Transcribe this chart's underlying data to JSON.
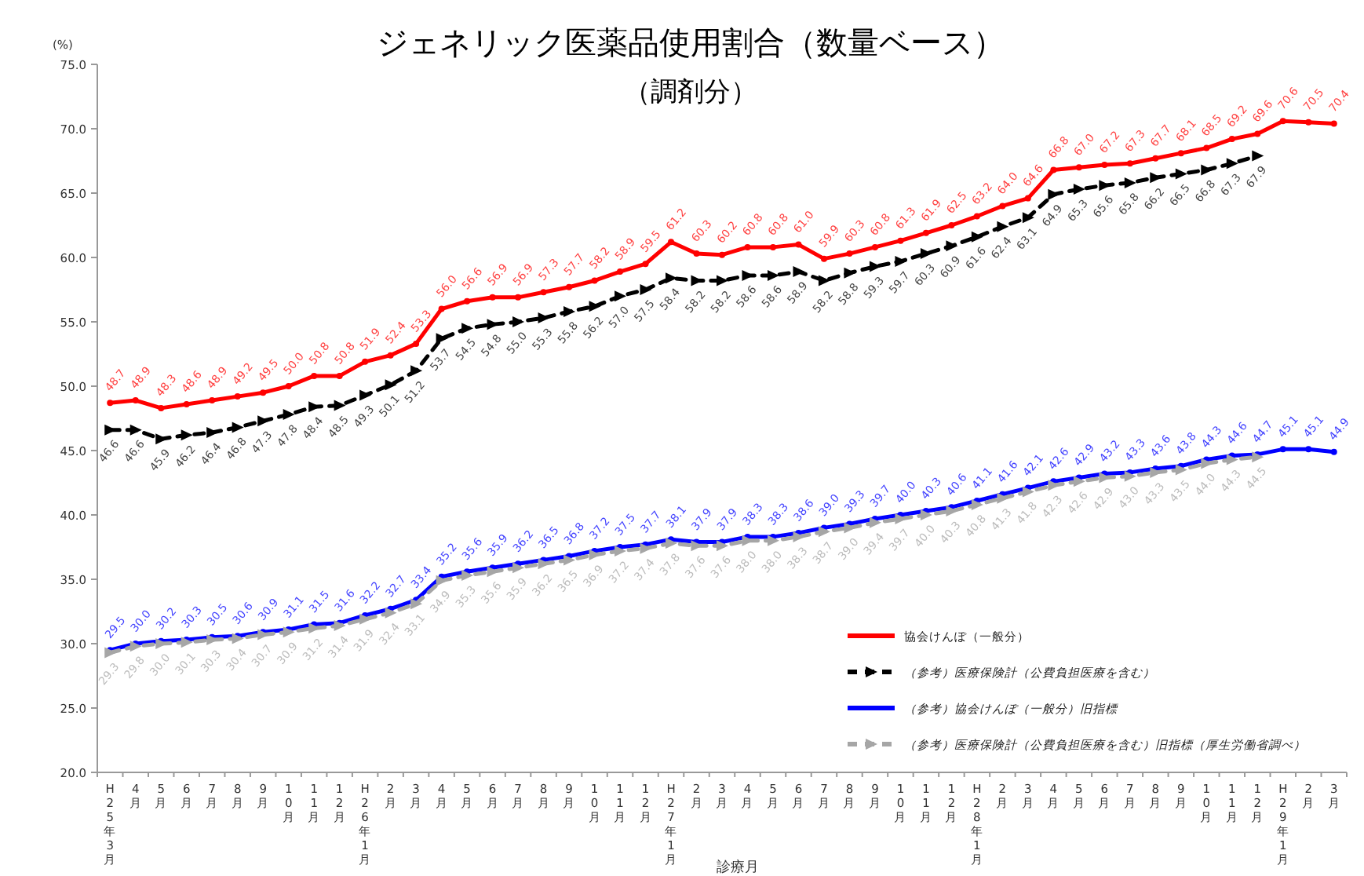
{
  "chart_data": {
    "type": "line",
    "title": "ジェネリック医薬品使用割合（数量ベース）",
    "subtitle": "（調剤分）",
    "xlabel": "診療月",
    "ylabel": "(%)",
    "categories": [
      "H25年3月",
      "4月",
      "5月",
      "6月",
      "7月",
      "8月",
      "9月",
      "10月",
      "11月",
      "12月",
      "H26年1月",
      "2月",
      "3月",
      "4月",
      "5月",
      "6月",
      "7月",
      "8月",
      "9月",
      "10月",
      "11月",
      "12月",
      "H27年1月",
      "2月",
      "3月",
      "4月",
      "5月",
      "6月",
      "7月",
      "8月",
      "9月",
      "10月",
      "11月",
      "12月",
      "H28年1月",
      "2月",
      "3月",
      "4月",
      "5月",
      "6月",
      "7月",
      "8月",
      "9月",
      "10月",
      "11月",
      "12月",
      "H29年1月",
      "2月",
      "3月"
    ],
    "series": [
      {
        "name": "協会けんぽ（一般分）",
        "color": "#ff0000",
        "marker": "circle",
        "line_style": "solid",
        "values": [
          48.7,
          48.9,
          48.3,
          48.6,
          48.9,
          49.2,
          49.5,
          50.0,
          50.8,
          50.8,
          51.9,
          52.4,
          53.3,
          56.0,
          56.6,
          56.9,
          56.9,
          57.3,
          57.7,
          58.2,
          58.9,
          59.5,
          61.2,
          60.3,
          60.2,
          60.8,
          60.8,
          61.0,
          59.9,
          60.3,
          60.8,
          61.3,
          61.9,
          62.5,
          63.2,
          64.0,
          64.6,
          66.8,
          67.0,
          67.2,
          67.3,
          67.7,
          68.1,
          68.5,
          69.2,
          69.6,
          70.6,
          70.5,
          70.4
        ],
        "value_labels": [
          "48.7",
          "48.9",
          "48.3",
          "48.6",
          "48.9",
          "49.2",
          "49.5",
          "50.0",
          "50.8",
          "50.8",
          "51.9",
          "52.4",
          "53.3",
          "56.0",
          "56.6",
          "56.9",
          "56.9",
          "57.3",
          "57.7",
          "58.2",
          "58.9",
          "59.5",
          "61.2",
          "60.3",
          "60.2",
          "60.8",
          "60.8",
          "61.0",
          "59.9",
          "60.3",
          "60.8",
          "61.3",
          "61.9",
          "62.5",
          "63.2",
          "64.0",
          "64.6",
          "66.8",
          "67.0",
          "67.2",
          "67.3",
          "67.7",
          "68.1",
          "68.5",
          "69.2",
          "69.6",
          "70.6",
          "70.5",
          "70.4"
        ]
      },
      {
        "name": "（参考）医療保険計（公費負担医療を含む）",
        "color": "#000000",
        "marker": "triangle",
        "line_style": "dashed",
        "values": [
          46.6,
          46.6,
          45.9,
          46.2,
          46.4,
          46.8,
          47.3,
          47.8,
          48.4,
          48.5,
          49.3,
          50.1,
          51.2,
          53.7,
          54.5,
          54.8,
          55.0,
          55.3,
          55.8,
          56.2,
          57.0,
          57.5,
          58.4,
          58.2,
          58.2,
          58.6,
          58.6,
          58.9,
          58.2,
          58.8,
          59.3,
          59.7,
          60.3,
          60.9,
          61.6,
          62.4,
          63.1,
          64.9,
          65.3,
          65.6,
          65.8,
          66.2,
          66.5,
          66.8,
          67.3,
          67.9,
          null,
          null,
          null
        ],
        "value_labels": [
          "46.6",
          "46.6",
          "45.9",
          "46.2",
          "46.4",
          "46.8",
          "47.3",
          "47.8",
          "48.4",
          "48.5",
          "49.3",
          "50.1",
          "51.2",
          "53.7",
          "54.5",
          "54.8",
          "55.0",
          "55.3",
          "55.8",
          "56.2",
          "57.0",
          "57.5",
          "58.4",
          "58.2",
          "58.2",
          "58.6",
          "58.6",
          "58.9",
          "58.2",
          "58.8",
          "59.3",
          "59.7",
          "60.3",
          "60.9",
          "61.6",
          "62.4",
          "63.1",
          "64.9",
          "65.3",
          "65.6",
          "65.8",
          "66.2",
          "66.5",
          "66.8",
          "67.3",
          "67.9",
          null,
          null,
          null
        ]
      },
      {
        "name": "（参考）協会けんぽ（一般分）旧指標",
        "color": "#0000ff",
        "marker": "circle",
        "line_style": "solid",
        "values": [
          29.5,
          30.0,
          30.2,
          30.3,
          30.5,
          30.6,
          30.9,
          31.1,
          31.5,
          31.6,
          32.2,
          32.7,
          33.4,
          35.2,
          35.6,
          35.9,
          36.2,
          36.5,
          36.8,
          37.2,
          37.5,
          37.7,
          38.1,
          37.9,
          37.9,
          38.3,
          38.3,
          38.6,
          39.0,
          39.3,
          39.7,
          40.0,
          40.3,
          40.6,
          41.1,
          41.6,
          42.1,
          42.6,
          42.9,
          43.2,
          43.3,
          43.6,
          43.8,
          44.3,
          44.6,
          44.7,
          45.1,
          45.1,
          44.9
        ],
        "value_labels": [
          "29.5",
          "30.0",
          "30.2",
          "30.3",
          "30.5",
          "30.6",
          "30.9",
          "31.1",
          "31.5",
          "31.6",
          "32.2",
          "32.7",
          "33.4",
          "35.2",
          "35.6",
          "35.9",
          "36.2",
          "36.5",
          "36.8",
          "37.2",
          "37.5",
          "37.7",
          "38.1",
          "37.9",
          "37.9",
          "38.3",
          "38.3",
          "38.6",
          "39.0",
          "39.3",
          "39.7",
          "40.0",
          "40.3",
          "40.6",
          "41.1",
          "41.6",
          "42.1",
          "42.6",
          "42.9",
          "43.2",
          "43.3",
          "43.6",
          "43.8",
          "44.3",
          "44.6",
          "44.7",
          "45.1",
          "45.1",
          "44.9"
        ]
      },
      {
        "name": "（参考）医療保険計（公費負担医療を含む）旧指標（厚生労働省調べ）",
        "color": "#a6a6a6",
        "marker": "triangle",
        "line_style": "dashed",
        "values": [
          29.3,
          29.8,
          30.0,
          30.1,
          30.3,
          30.4,
          30.7,
          30.9,
          31.2,
          31.4,
          31.9,
          32.4,
          33.1,
          34.9,
          35.3,
          35.6,
          35.9,
          36.2,
          36.5,
          36.9,
          37.2,
          37.4,
          37.8,
          37.6,
          37.6,
          38.0,
          38.0,
          38.3,
          38.7,
          39.0,
          39.4,
          39.7,
          40.0,
          40.3,
          40.8,
          41.3,
          41.8,
          42.3,
          42.6,
          42.9,
          43.0,
          43.3,
          43.5,
          44.0,
          44.3,
          44.5,
          null,
          null,
          null
        ],
        "value_labels": [
          "29.3",
          "29.8",
          "30.0",
          "30.1",
          "30.3",
          "30.4",
          "30.7",
          "30.9",
          "31.2",
          "31.4",
          "31.9",
          "32.4",
          "33.1",
          "34.9",
          "35.3",
          "35.6",
          "35.9",
          "36.2",
          "36.5",
          "36.9",
          "37.2",
          "37.4",
          "37.8",
          "37.6",
          "37.6",
          "38.0",
          "38.0",
          "38.3",
          "38.7",
          "39.0",
          "39.4",
          "39.7",
          "40.0",
          "40.3",
          "40.8",
          "41.3",
          "41.8",
          "42.3",
          "42.6",
          "42.9",
          "43.0",
          "43.3",
          "43.5",
          "44.0",
          "44.3",
          "44.5",
          null,
          null,
          null
        ]
      }
    ],
    "ylim": [
      20,
      75
    ],
    "yticks": [
      {
        "value": 20,
        "label": "20.0"
      },
      {
        "value": 25,
        "label": "25.0"
      },
      {
        "value": 30,
        "label": "30.0"
      },
      {
        "value": 35,
        "label": "35.0"
      },
      {
        "value": 40,
        "label": "40.0"
      },
      {
        "value": 45,
        "label": "45.0"
      },
      {
        "value": 50,
        "label": "50.0"
      },
      {
        "value": 55,
        "label": "55.0"
      },
      {
        "value": 60,
        "label": "60.0"
      },
      {
        "value": 65,
        "label": "65.0"
      },
      {
        "value": 70,
        "label": "70.0"
      },
      {
        "value": 75,
        "label": "75.0"
      }
    ],
    "legend": "bottom right"
  }
}
